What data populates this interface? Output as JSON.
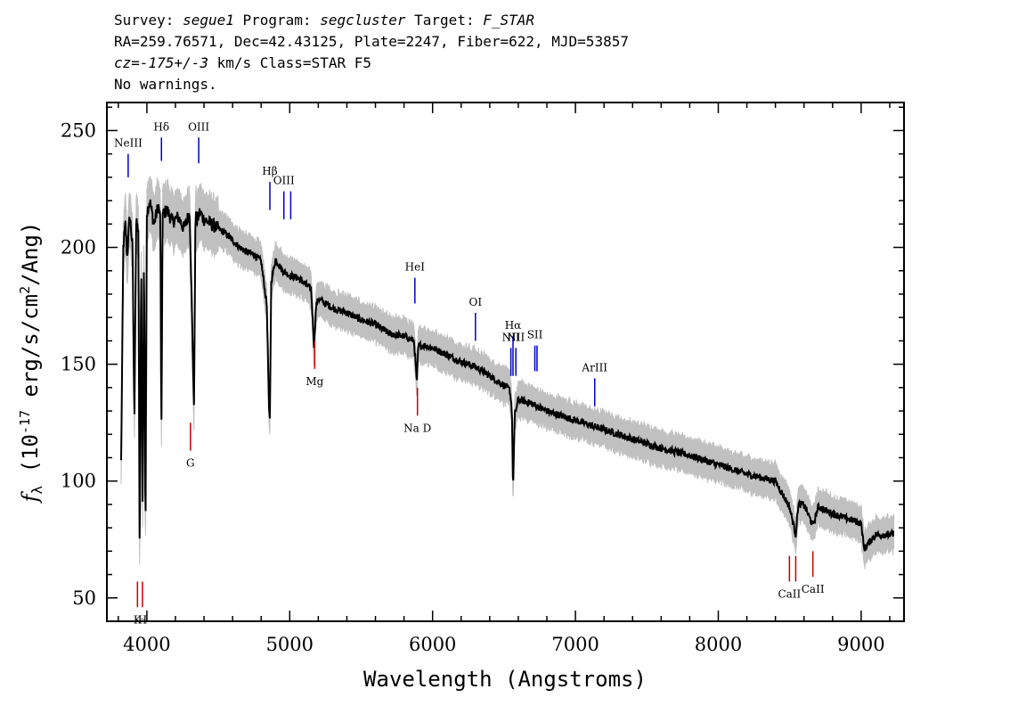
{
  "header": {
    "survey_label": "Survey: ",
    "survey": "segue1",
    "program_label": " Program: ",
    "program": "segcluster",
    "target_label": " Target: ",
    "target": "F_STAR",
    "line2": "RA=259.76571, Dec=42.43125, Plate=2247, Fiber=622, MJD=53857",
    "cz_label": "cz=",
    "cz_value": "-175+/-3",
    "cz_rest": " km/s Class=STAR F5",
    "line4": "No warnings."
  },
  "chart_data": {
    "type": "line",
    "xlabel": "Wavelength (Angstroms)",
    "ylabel": "f_λ (10^-17 erg/s/cm^2/Ang)",
    "xlim": [
      3720,
      9300
    ],
    "ylim": [
      40,
      262
    ],
    "xticks": [
      4000,
      5000,
      6000,
      7000,
      8000,
      9000
    ],
    "yticks": [
      50,
      100,
      150,
      200,
      250
    ],
    "grid": false,
    "colors": {
      "flux": "#000000",
      "error_band": "#c0c0c0",
      "emission": "#0000cc",
      "absorption": "#cc0000"
    },
    "series": [
      {
        "x": [
          3820,
          3835,
          3850,
          3862,
          3880,
          3900,
          3912,
          3925,
          3940,
          3950,
          3960,
          3970,
          3980,
          3990,
          4000,
          4020,
          4050,
          4080,
          4095,
          4101,
          4110,
          4140,
          4180,
          4220,
          4260,
          4300,
          4330,
          4340,
          4350,
          4370,
          4400,
          4450,
          4500,
          4550,
          4600,
          4650,
          4700,
          4750,
          4800,
          4840,
          4855,
          4861,
          4870,
          4900,
          4950,
          5000,
          5050,
          5100,
          5150,
          5170,
          5185,
          5200,
          5250,
          5300,
          5400,
          5500,
          5600,
          5700,
          5800,
          5870,
          5890,
          5900,
          5950,
          6000,
          6100,
          6200,
          6300,
          6400,
          6500,
          6540,
          6555,
          6563,
          6575,
          6600,
          6700,
          6800,
          6900,
          7000,
          7200,
          7400,
          7600,
          7800,
          8000,
          8200,
          8400,
          8498,
          8542,
          8560,
          8600,
          8662,
          8700,
          8800,
          8900,
          9000,
          9020,
          9100,
          9200,
          9230
        ],
        "y": [
          108,
          200,
          210,
          196,
          214,
          200,
          124,
          210,
          208,
          62,
          200,
          90,
          202,
          70,
          215,
          220,
          210,
          218,
          212,
          112,
          214,
          216,
          211,
          213,
          208,
          215,
          130,
          214,
          211,
          215,
          212,
          210,
          208,
          206,
          203,
          200,
          198,
          197,
          194,
          175,
          130,
          126,
          185,
          195,
          190,
          188,
          187,
          185,
          182,
          158,
          175,
          178,
          176,
          174,
          172,
          169,
          167,
          163,
          162,
          160,
          142,
          158,
          158,
          157,
          154,
          151,
          149,
          145,
          141,
          139,
          131,
          96,
          128,
          135,
          133,
          130,
          128,
          126,
          122,
          118,
          114,
          111,
          107,
          103,
          100,
          89,
          77,
          90,
          90,
          81,
          89,
          86,
          84,
          82,
          71,
          77,
          77,
          77
        ]
      }
    ],
    "line_labels": [
      {
        "label": "NeIII",
        "wavelength": 3869,
        "kind": "emission",
        "y_top": 230,
        "y_bot": 240
      },
      {
        "label": "Hδ",
        "wavelength": 4102,
        "kind": "emission",
        "y_top": 237,
        "y_bot": 247
      },
      {
        "label": "OIII",
        "wavelength": 4363,
        "kind": "emission",
        "y_top": 236,
        "y_bot": 247
      },
      {
        "label": "Hβ",
        "wavelength": 4861,
        "kind": "emission",
        "y_top": 216,
        "y_bot": 228
      },
      {
        "label": "OIII",
        "wavelength": 4959,
        "kind": "emission",
        "y_top": 212,
        "y_bot": 224
      },
      {
        "label": "OIII",
        "wavelength": 5007,
        "kind": "emission",
        "y_top": 212,
        "y_bot": 224
      },
      {
        "label": "HeI",
        "wavelength": 5876,
        "kind": "emission",
        "y_top": 176,
        "y_bot": 187
      },
      {
        "label": "OI",
        "wavelength": 6300,
        "kind": "emission",
        "y_top": 160,
        "y_bot": 172
      },
      {
        "label": "NII",
        "wavelength": 6548,
        "kind": "emission",
        "y_top": 145,
        "y_bot": 157
      },
      {
        "label": "Hα",
        "wavelength": 6563,
        "kind": "emission",
        "y_top": 145,
        "y_bot": 162
      },
      {
        "label": "NII",
        "wavelength": 6583,
        "kind": "emission",
        "y_top": 145,
        "y_bot": 157
      },
      {
        "label": "SII",
        "wavelength": 6716,
        "kind": "emission",
        "y_top": 147,
        "y_bot": 158
      },
      {
        "label": "SII",
        "wavelength": 6731,
        "kind": "emission",
        "y_top": 147,
        "y_bot": 158
      },
      {
        "label": "ArIII",
        "wavelength": 7135,
        "kind": "emission",
        "y_top": 132,
        "y_bot": 144
      },
      {
        "label": "K",
        "wavelength": 3934,
        "kind": "absorption",
        "y_top": 46,
        "y_bot": 57
      },
      {
        "label": "H",
        "wavelength": 3969,
        "kind": "absorption",
        "y_top": 46,
        "y_bot": 57
      },
      {
        "label": "G",
        "wavelength": 4305,
        "kind": "absorption",
        "y_top": 113,
        "y_bot": 125
      },
      {
        "label": "Mg",
        "wavelength": 5175,
        "kind": "absorption",
        "y_top": 148,
        "y_bot": 160
      },
      {
        "label": "Na D",
        "wavelength": 5894,
        "kind": "absorption",
        "y_top": 128,
        "y_bot": 140
      },
      {
        "label": "CaII",
        "wavelength": 8498,
        "kind": "absorption",
        "y_top": 57,
        "y_bot": 68
      },
      {
        "label": "CaII",
        "wavelength": 8542,
        "kind": "absorption",
        "y_top": 57,
        "y_bot": 68
      },
      {
        "label": "CaII",
        "wavelength": 8662,
        "kind": "absorption",
        "y_top": 59,
        "y_bot": 70
      }
    ]
  }
}
